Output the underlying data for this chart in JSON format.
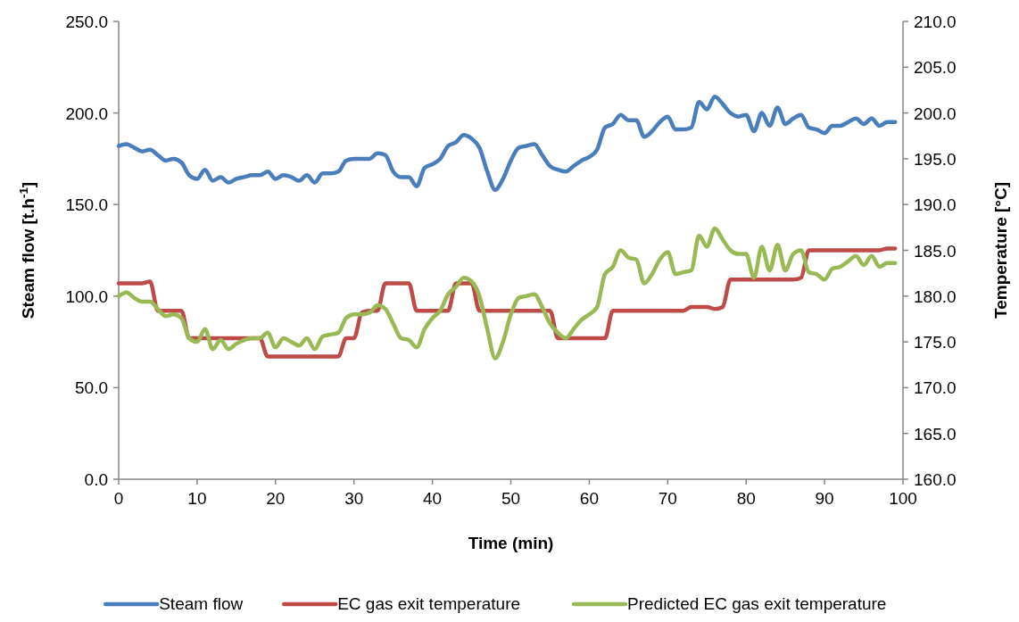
{
  "chart_data": {
    "type": "line",
    "xlabel": "Time (min)",
    "ylabel": "Steam flow [t.h$^{-1}$]",
    "y2label": "Temperature [°C]",
    "x": [
      0,
      1,
      2,
      3,
      4,
      5,
      6,
      7,
      8,
      9,
      10,
      11,
      12,
      13,
      14,
      15,
      16,
      17,
      18,
      19,
      20,
      21,
      22,
      23,
      24,
      25,
      26,
      27,
      28,
      29,
      30,
      31,
      32,
      33,
      34,
      35,
      36,
      37,
      38,
      39,
      40,
      41,
      42,
      43,
      44,
      45,
      46,
      47,
      48,
      49,
      50,
      51,
      52,
      53,
      54,
      55,
      56,
      57,
      58,
      59,
      60,
      61,
      62,
      63,
      64,
      65,
      66,
      67,
      68,
      69,
      70,
      71,
      72,
      73,
      74,
      75,
      76,
      77,
      78,
      79,
      80,
      81,
      82,
      83,
      84,
      85,
      86,
      87,
      88,
      89,
      90,
      91,
      92,
      93,
      94,
      95,
      96,
      97,
      98,
      99
    ],
    "xlim": [
      0,
      100
    ],
    "xticks": [
      0,
      10,
      20,
      30,
      40,
      50,
      60,
      70,
      80,
      90,
      100
    ],
    "ylim": [
      0,
      250
    ],
    "yticks": [
      {
        "value": 0,
        "label": "0.0"
      },
      {
        "value": 50,
        "label": "50.0"
      },
      {
        "value": 100,
        "label": "100.0"
      },
      {
        "value": 150,
        "label": "150.0"
      },
      {
        "value": 200,
        "label": "200.0"
      },
      {
        "value": 250,
        "label": "250.0"
      }
    ],
    "y2lim": [
      160,
      210
    ],
    "y2ticks": [
      {
        "value": 160,
        "label": "160.0"
      },
      {
        "value": 165,
        "label": "165.0"
      },
      {
        "value": 170,
        "label": "170.0"
      },
      {
        "value": 175,
        "label": "175.0"
      },
      {
        "value": 180,
        "label": "180.0"
      },
      {
        "value": 185,
        "label": "185.0"
      },
      {
        "value": 190,
        "label": "190.0"
      },
      {
        "value": 195,
        "label": "195.0"
      },
      {
        "value": 200,
        "label": "200.0"
      },
      {
        "value": 205,
        "label": "205.0"
      },
      {
        "value": 210,
        "label": "210.0"
      }
    ],
    "grid": false,
    "legend": "bottom",
    "marker": "none",
    "line_style": "solid",
    "series": [
      {
        "name": "Steam flow",
        "color": "#4a7ebb",
        "values": [
          182,
          183,
          181,
          179,
          180,
          177,
          174,
          175,
          173,
          166,
          164,
          169,
          163,
          165,
          162,
          164,
          165,
          166,
          166,
          168,
          164,
          166,
          165,
          163,
          166,
          162,
          167,
          167,
          168,
          174,
          175,
          175,
          175,
          178,
          177,
          168,
          165,
          165,
          160,
          170,
          172,
          175,
          182,
          184,
          188,
          186,
          181,
          168,
          158,
          164,
          174,
          181,
          182,
          183,
          177,
          171,
          169,
          168,
          171,
          174,
          176,
          180,
          192,
          194,
          199,
          196,
          196,
          187,
          190,
          195,
          198,
          191,
          191,
          192,
          206,
          202,
          209,
          205,
          200,
          198,
          199,
          190,
          200,
          193,
          203,
          194,
          197,
          199,
          192,
          191,
          189,
          193,
          193,
          195,
          197,
          194,
          197,
          193,
          195,
          195
        ]
      },
      {
        "name": "EC gas exit temperature",
        "color": "#be4b48",
        "axis": "y2",
        "values": [
          181.4,
          181.4,
          181.4,
          181.4,
          181.6,
          178.4,
          178.4,
          178.4,
          178.4,
          175.4,
          175.4,
          175.4,
          175.4,
          175.4,
          175.4,
          175.4,
          175.4,
          175.4,
          175.4,
          173.4,
          173.4,
          173.4,
          173.4,
          173.4,
          173.4,
          173.4,
          173.4,
          173.4,
          173.4,
          175.4,
          175.4,
          178.2,
          178.4,
          178.4,
          181.4,
          181.4,
          181.4,
          181.4,
          178.4,
          178.4,
          178.4,
          178.4,
          178.4,
          181.4,
          181.4,
          181.4,
          178.4,
          178.4,
          178.4,
          178.4,
          178.4,
          178.4,
          178.4,
          178.4,
          178.4,
          178.4,
          175.4,
          175.4,
          175.4,
          175.4,
          175.4,
          175.4,
          175.4,
          178.4,
          178.4,
          178.4,
          178.4,
          178.4,
          178.4,
          178.4,
          178.4,
          178.4,
          178.4,
          178.8,
          178.8,
          178.8,
          178.6,
          178.8,
          181.8,
          181.8,
          181.8,
          181.8,
          181.8,
          181.8,
          181.8,
          181.8,
          181.8,
          182.0,
          185.0,
          185.0,
          185.0,
          185.0,
          185.0,
          185.0,
          185.0,
          185.0,
          185.0,
          185.0,
          185.2,
          185.2
        ]
      },
      {
        "name": "Predicted EC gas exit temperature",
        "color": "#98b954",
        "axis": "y2",
        "values": [
          180.0,
          180.4,
          179.8,
          179.4,
          179.4,
          178.6,
          177.8,
          178.0,
          177.6,
          175.4,
          175.0,
          176.4,
          174.2,
          175.2,
          174.2,
          174.8,
          175.2,
          175.4,
          175.4,
          176.0,
          174.4,
          175.4,
          175.0,
          174.6,
          175.4,
          174.2,
          175.6,
          175.8,
          176.0,
          177.6,
          178.0,
          178.0,
          178.2,
          179.0,
          178.6,
          177.0,
          175.4,
          175.2,
          174.4,
          176.4,
          177.6,
          178.4,
          180.2,
          181.0,
          182.0,
          181.6,
          180.0,
          176.4,
          173.2,
          175.0,
          178.0,
          179.8,
          180.0,
          180.2,
          178.8,
          177.0,
          176.0,
          175.4,
          176.4,
          177.4,
          178.0,
          178.8,
          182.4,
          183.2,
          185.0,
          184.2,
          184.0,
          181.4,
          182.4,
          184.0,
          184.8,
          182.4,
          182.6,
          182.8,
          186.6,
          185.4,
          187.4,
          186.2,
          185.0,
          184.6,
          184.6,
          182.0,
          185.4,
          182.8,
          185.6,
          182.8,
          184.6,
          185.0,
          182.6,
          182.4,
          181.8,
          183.0,
          183.2,
          183.8,
          184.4,
          183.4,
          184.4,
          183.2,
          183.6,
          183.6
        ]
      }
    ]
  }
}
